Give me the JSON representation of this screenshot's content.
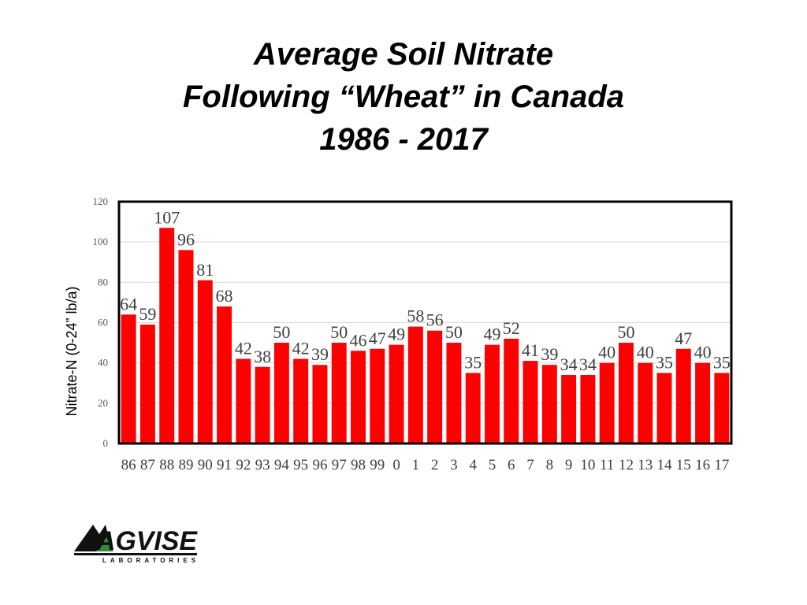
{
  "title_lines": [
    "Average Soil Nitrate",
    "Following “Wheat” in Canada",
    "1986 - 2017"
  ],
  "colors": {
    "bar": "#ff0000",
    "bar_edge": "#c00000",
    "frame": "#000000",
    "grid": "#d9d9d9",
    "label": "#404040",
    "tick": "#595959"
  },
  "logo": {
    "brand": "AGVISE",
    "sub": "LABORATORIES",
    "accent": "#2e8b3d"
  },
  "chart_data": {
    "type": "bar",
    "title": "Average Soil Nitrate Following “Wheat” in Canada 1986 - 2017",
    "xlabel": "",
    "ylabel": "Nitrate-N (0-24” lb/a)",
    "ylim": [
      0,
      120
    ],
    "yticks": [
      0,
      20,
      40,
      60,
      80,
      100,
      120
    ],
    "grid": true,
    "legend": "none",
    "categories": [
      "86",
      "87",
      "88",
      "89",
      "90",
      "91",
      "92",
      "93",
      "94",
      "95",
      "96",
      "97",
      "98",
      "99",
      "0",
      "1",
      "2",
      "3",
      "4",
      "5",
      "6",
      "7",
      "8",
      "9",
      "10",
      "11",
      "12",
      "13",
      "14",
      "15",
      "16",
      "17"
    ],
    "values": [
      64,
      59,
      107,
      96,
      81,
      68,
      42,
      38,
      50,
      42,
      39,
      50,
      46,
      47,
      49,
      58,
      56,
      50,
      35,
      49,
      52,
      41,
      39,
      34,
      34,
      40,
      50,
      40,
      35,
      47,
      40,
      35
    ]
  }
}
